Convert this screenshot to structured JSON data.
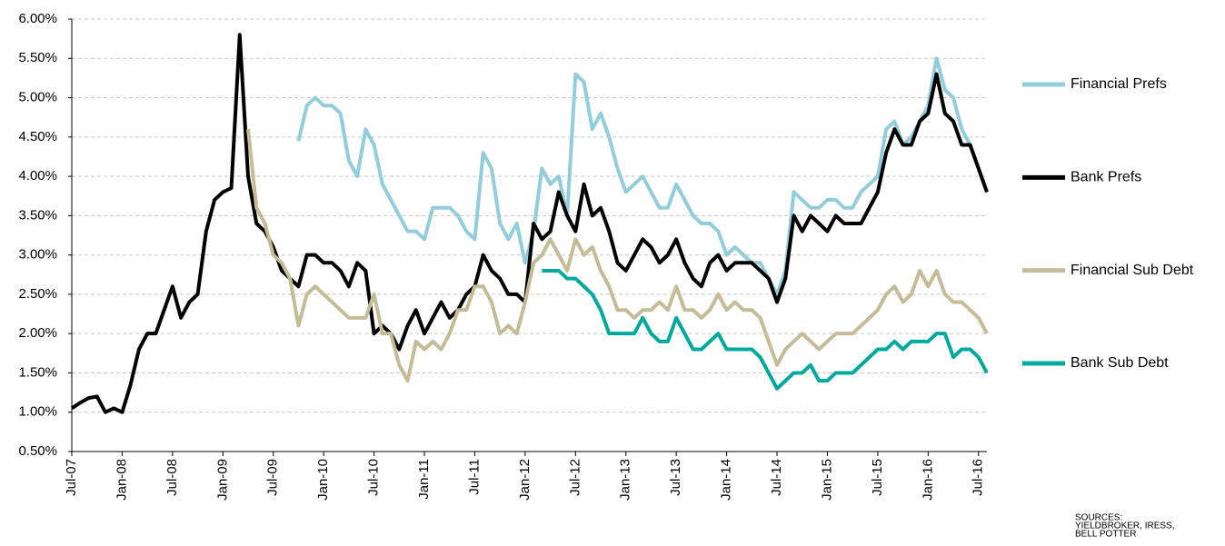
{
  "chart_data": {
    "type": "line",
    "categories": [
      "Jul-07",
      null,
      null,
      null,
      null,
      null,
      "Jan-08",
      null,
      null,
      null,
      null,
      null,
      "Jul-08",
      null,
      null,
      null,
      null,
      null,
      "Jan-09",
      null,
      null,
      null,
      null,
      null,
      "Jul-09",
      null,
      null,
      null,
      null,
      null,
      "Jan-10",
      null,
      null,
      null,
      null,
      null,
      "Jul-10",
      null,
      null,
      null,
      null,
      null,
      "Jan-11",
      null,
      null,
      null,
      null,
      null,
      "Jul-11",
      null,
      null,
      null,
      null,
      null,
      "Jan-12",
      null,
      null,
      null,
      null,
      null,
      "Jul-12",
      null,
      null,
      null,
      null,
      null,
      "Jan-13",
      null,
      null,
      null,
      null,
      null,
      "Jul-13",
      null,
      null,
      null,
      null,
      null,
      "Jan-14",
      null,
      null,
      null,
      null,
      null,
      "Jul-14",
      null,
      null,
      null,
      null,
      null,
      "Jan-15",
      null,
      null,
      null,
      null,
      null,
      "Jul-15",
      null,
      null,
      null,
      null,
      null,
      "Jan-16",
      null,
      null,
      null,
      null,
      null,
      "Jul-16",
      null
    ],
    "series": [
      {
        "name": "Financial Prefs",
        "color": "#92cddc",
        "values": [
          null,
          null,
          null,
          null,
          null,
          null,
          null,
          null,
          null,
          null,
          null,
          null,
          null,
          null,
          null,
          null,
          null,
          null,
          null,
          null,
          null,
          null,
          null,
          null,
          null,
          null,
          null,
          4.45,
          4.9,
          5.0,
          4.9,
          4.9,
          4.8,
          4.2,
          4.0,
          4.6,
          4.4,
          3.9,
          3.7,
          3.5,
          3.3,
          3.3,
          3.2,
          3.6,
          3.6,
          3.6,
          3.5,
          3.3,
          3.2,
          4.3,
          4.1,
          3.4,
          3.2,
          3.4,
          2.9,
          3.3,
          4.1,
          3.9,
          4.0,
          3.5,
          5.3,
          5.2,
          4.6,
          4.8,
          4.5,
          4.1,
          3.8,
          3.9,
          4.0,
          3.8,
          3.6,
          3.6,
          3.9,
          3.7,
          3.5,
          3.4,
          3.4,
          3.3,
          3.0,
          3.1,
          3.0,
          2.9,
          2.9,
          2.7,
          2.5,
          2.8,
          3.8,
          3.7,
          3.6,
          3.6,
          3.7,
          3.7,
          3.6,
          3.6,
          3.8,
          3.9,
          4.0,
          4.6,
          4.7,
          4.4,
          4.5,
          4.7,
          4.9,
          5.5,
          5.1,
          5.0,
          4.6,
          4.4,
          4.1,
          3.8
        ]
      },
      {
        "name": "Bank Prefs",
        "color": "#000000",
        "values": [
          1.05,
          1.12,
          1.18,
          1.2,
          1.0,
          1.05,
          1.0,
          1.35,
          1.8,
          2.0,
          2.0,
          2.3,
          2.6,
          2.2,
          2.4,
          2.5,
          3.3,
          3.7,
          3.8,
          3.85,
          5.8,
          4.0,
          3.4,
          3.3,
          3.1,
          2.8,
          2.7,
          2.6,
          3.0,
          3.0,
          2.9,
          2.9,
          2.8,
          2.6,
          2.9,
          2.8,
          2.0,
          2.1,
          2.0,
          1.8,
          2.1,
          2.3,
          2.0,
          2.2,
          2.4,
          2.2,
          2.3,
          2.5,
          2.6,
          3.0,
          2.8,
          2.7,
          2.5,
          2.5,
          2.4,
          3.4,
          3.2,
          3.3,
          3.8,
          3.5,
          3.3,
          3.9,
          3.5,
          3.6,
          3.3,
          2.9,
          2.8,
          3.0,
          3.2,
          3.1,
          2.9,
          3.0,
          3.2,
          2.9,
          2.7,
          2.6,
          2.9,
          3.0,
          2.8,
          2.9,
          2.9,
          2.9,
          2.8,
          2.7,
          2.4,
          2.7,
          3.5,
          3.3,
          3.5,
          3.4,
          3.3,
          3.5,
          3.4,
          3.4,
          3.4,
          3.6,
          3.8,
          4.3,
          4.6,
          4.4,
          4.4,
          4.7,
          4.8,
          5.3,
          4.8,
          4.7,
          4.4,
          4.4,
          4.1,
          3.8
        ]
      },
      {
        "name": "Financial Sub Debt",
        "color": "#c4bc96",
        "values": [
          null,
          null,
          null,
          null,
          null,
          null,
          null,
          null,
          null,
          null,
          null,
          null,
          null,
          null,
          null,
          null,
          null,
          null,
          null,
          null,
          null,
          4.6,
          3.6,
          3.4,
          3.0,
          2.9,
          2.7,
          2.1,
          2.5,
          2.6,
          2.5,
          2.4,
          2.3,
          2.2,
          2.2,
          2.2,
          2.5,
          2.0,
          2.0,
          1.6,
          1.4,
          1.9,
          1.8,
          1.9,
          1.8,
          2.0,
          2.3,
          2.3,
          2.6,
          2.6,
          2.4,
          2.0,
          2.1,
          2.0,
          2.4,
          2.9,
          3.0,
          3.2,
          3.0,
          2.8,
          3.2,
          3.0,
          3.1,
          2.8,
          2.6,
          2.3,
          2.3,
          2.2,
          2.3,
          2.3,
          2.4,
          2.3,
          2.6,
          2.3,
          2.3,
          2.2,
          2.3,
          2.5,
          2.3,
          2.4,
          2.3,
          2.3,
          2.2,
          1.9,
          1.6,
          1.8,
          1.9,
          2.0,
          1.9,
          1.8,
          1.9,
          2.0,
          2.0,
          2.0,
          2.1,
          2.2,
          2.3,
          2.5,
          2.6,
          2.4,
          2.5,
          2.8,
          2.6,
          2.8,
          2.5,
          2.4,
          2.4,
          2.3,
          2.2,
          2.0
        ]
      },
      {
        "name": "Bank Sub Debt",
        "color": "#00a99d",
        "values": [
          null,
          null,
          null,
          null,
          null,
          null,
          null,
          null,
          null,
          null,
          null,
          null,
          null,
          null,
          null,
          null,
          null,
          null,
          null,
          null,
          null,
          null,
          null,
          null,
          null,
          null,
          null,
          null,
          null,
          null,
          null,
          null,
          null,
          null,
          null,
          null,
          null,
          null,
          null,
          null,
          null,
          null,
          null,
          null,
          null,
          null,
          null,
          null,
          null,
          null,
          null,
          null,
          null,
          null,
          null,
          null,
          2.8,
          2.8,
          2.8,
          2.7,
          2.7,
          2.6,
          2.5,
          2.3,
          2.0,
          2.0,
          2.0,
          2.0,
          2.2,
          2.0,
          1.9,
          1.9,
          2.2,
          2.0,
          1.8,
          1.8,
          1.9,
          2.0,
          1.8,
          1.8,
          1.8,
          1.8,
          1.7,
          1.5,
          1.3,
          1.4,
          1.5,
          1.5,
          1.6,
          1.4,
          1.4,
          1.5,
          1.5,
          1.5,
          1.6,
          1.7,
          1.8,
          1.8,
          1.9,
          1.8,
          1.9,
          1.9,
          1.9,
          2.0,
          2.0,
          1.7,
          1.8,
          1.8,
          1.7,
          1.5
        ]
      }
    ],
    "ylim": [
      0.5,
      6
    ],
    "yticks": [
      {
        "value": 0.5,
        "label": "0.50%"
      },
      {
        "value": 1,
        "label": "1.00%"
      },
      {
        "value": 1.5,
        "label": "1.50%"
      },
      {
        "value": 2,
        "label": "2.00%"
      },
      {
        "value": 2.5,
        "label": "2.50%"
      },
      {
        "value": 3,
        "label": "3.00%"
      },
      {
        "value": 3.5,
        "label": "3.50%"
      },
      {
        "value": 4,
        "label": "4.00%"
      },
      {
        "value": 4.5,
        "label": "4.50%"
      },
      {
        "value": 5,
        "label": "5.00%"
      },
      {
        "value": 5.5,
        "label": "5.50%"
      },
      {
        "value": 6,
        "label": "6.00%"
      }
    ],
    "grid": true,
    "legend": "right",
    "source": [
      "SOURCES:",
      "YIELDBROKER, IRESS,",
      "BELL POTTER"
    ]
  }
}
